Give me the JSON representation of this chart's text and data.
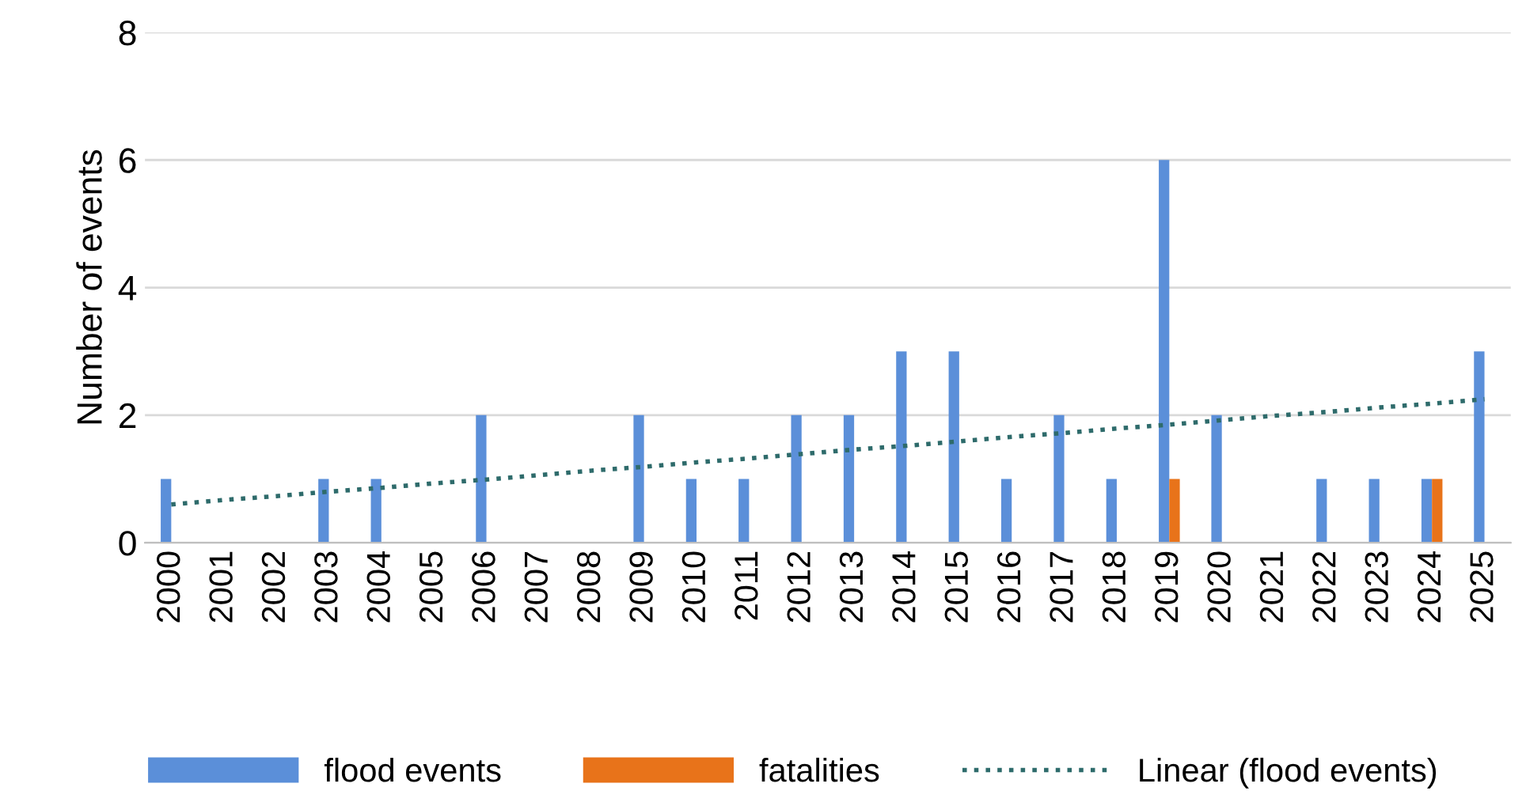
{
  "chart_data": {
    "type": "bar",
    "ylabel": "Number of events",
    "categories": [
      "2000",
      "2001",
      "2002",
      "2003",
      "2004",
      "2005",
      "2006",
      "2007",
      "2008",
      "2009",
      "2010",
      "2011",
      "2012",
      "2013",
      "2014",
      "2015",
      "2016",
      "2017",
      "2018",
      "2019",
      "2020",
      "2021",
      "2022",
      "2023",
      "2024",
      "2025"
    ],
    "series": [
      {
        "name": "flood events",
        "color": "#5b8fd9",
        "values": [
          1,
          0,
          0,
          1,
          1,
          0,
          2,
          0,
          0,
          2,
          1,
          1,
          2,
          2,
          3,
          3,
          1,
          2,
          1,
          6,
          2,
          0,
          1,
          1,
          1,
          3
        ]
      },
      {
        "name": "fatalities",
        "color": "#e8731a",
        "values": [
          0,
          0,
          0,
          0,
          0,
          0,
          0,
          0,
          0,
          0,
          0,
          0,
          0,
          0,
          0,
          0,
          0,
          0,
          0,
          1,
          0,
          0,
          0,
          0,
          1,
          0
        ]
      },
      {
        "name": "Linear (flood events)",
        "type": "line",
        "color": "#2e6b6b",
        "line_style": "dotted",
        "values": [
          0.6,
          0.67,
          0.73,
          0.8,
          0.86,
          0.93,
          0.99,
          1.06,
          1.13,
          1.19,
          1.26,
          1.32,
          1.39,
          1.46,
          1.52,
          1.59,
          1.66,
          1.72,
          1.79,
          1.85,
          1.92,
          1.99,
          2.05,
          2.12,
          2.18,
          2.25
        ]
      }
    ],
    "ylim": [
      0,
      8
    ],
    "yticks": [
      0,
      2,
      4,
      6,
      8
    ],
    "grid": "y",
    "legend": "bottom"
  }
}
